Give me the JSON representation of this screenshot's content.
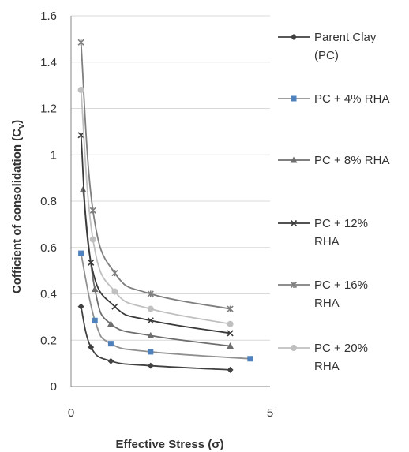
{
  "chart_data": {
    "type": "line",
    "xlabel": "Effective Stress (σ)",
    "ylabel": "Cofficient of consolidation (C",
    "ylabel_sub": "v",
    "ylabel_end": ")",
    "xlim": [
      0,
      5
    ],
    "ylim": [
      0,
      1.6
    ],
    "x_ticks": [
      "0",
      "5"
    ],
    "y_ticks": [
      "0",
      "0.2",
      "0.4",
      "0.6",
      "0.8",
      "1",
      "1.2",
      "1.4",
      "1.6"
    ],
    "grid": "horizontal",
    "legend_position": "right",
    "series": [
      {
        "name_lines": [
          "Parent Clay",
          "(PC)"
        ],
        "color": "#404040",
        "marker": "diamond",
        "x": [
          0.25,
          0.5,
          1.0,
          2.0,
          4.0
        ],
        "y": [
          0.345,
          0.17,
          0.11,
          0.09,
          0.072
        ]
      },
      {
        "name_lines": [
          "PC + 4% RHA"
        ],
        "color": "#4f81bd",
        "line_color": "#909090",
        "marker": "square",
        "x": [
          0.25,
          0.6,
          1.0,
          2.0,
          4.5
        ],
        "y": [
          0.575,
          0.285,
          0.185,
          0.15,
          0.12
        ]
      },
      {
        "name_lines": [
          "PC + 8% RHA"
        ],
        "color": "#6e6e6e",
        "marker": "triangle",
        "x": [
          0.3,
          0.6,
          1.0,
          2.0,
          4.0
        ],
        "y": [
          0.85,
          0.42,
          0.27,
          0.22,
          0.175
        ]
      },
      {
        "name_lines": [
          "PC + 12%",
          "RHA"
        ],
        "color": "#3a3a3a",
        "marker": "x",
        "x": [
          0.25,
          0.5,
          1.1,
          2.0,
          4.0
        ],
        "y": [
          1.085,
          0.535,
          0.345,
          0.285,
          0.23
        ]
      },
      {
        "name_lines": [
          "PC + 16%",
          "RHA"
        ],
        "color": "#7f7f7f",
        "marker": "star",
        "x": [
          0.25,
          0.55,
          1.1,
          2.0,
          4.0
        ],
        "y": [
          1.485,
          0.76,
          0.49,
          0.4,
          0.335
        ]
      },
      {
        "name_lines": [
          "PC + 20%",
          "RHA"
        ],
        "color": "#c0c0c0",
        "marker": "circle",
        "x": [
          0.25,
          0.55,
          1.1,
          2.0,
          4.0
        ],
        "y": [
          1.28,
          0.635,
          0.41,
          0.335,
          0.27
        ]
      }
    ]
  }
}
